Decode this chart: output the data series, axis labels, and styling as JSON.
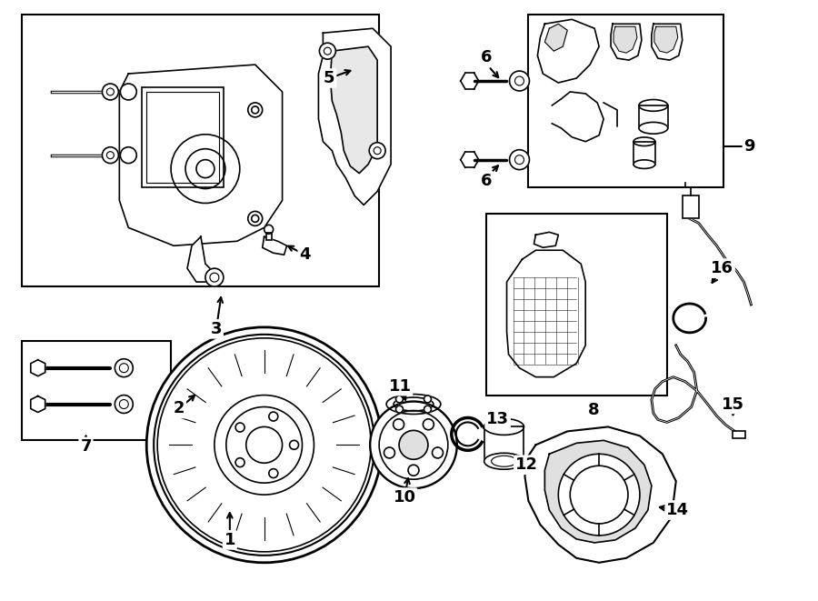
{
  "bg_color": "#ffffff",
  "line_color": "#000000",
  "labels": {
    "1": [
      252,
      595,
      252,
      560
    ],
    "2": [
      196,
      450,
      217,
      432
    ],
    "3": [
      237,
      362,
      243,
      322
    ],
    "4": [
      335,
      280,
      312,
      268
    ],
    "5": [
      362,
      85,
      390,
      75
    ],
    "6a": [
      535,
      62,
      552,
      88
    ],
    "6b": [
      535,
      198,
      552,
      178
    ],
    "7": [
      93,
      492,
      93,
      475
    ],
    "8": [
      648,
      452,
      648,
      452
    ],
    "9": [
      820,
      160,
      820,
      160
    ],
    "10": [
      445,
      548,
      450,
      522
    ],
    "11": [
      440,
      425,
      448,
      445
    ],
    "12": [
      580,
      512,
      563,
      498
    ],
    "13": [
      548,
      462,
      528,
      474
    ],
    "14": [
      747,
      562,
      722,
      558
    ],
    "15": [
      808,
      445,
      808,
      462
    ],
    "16": [
      796,
      295,
      782,
      315
    ]
  }
}
